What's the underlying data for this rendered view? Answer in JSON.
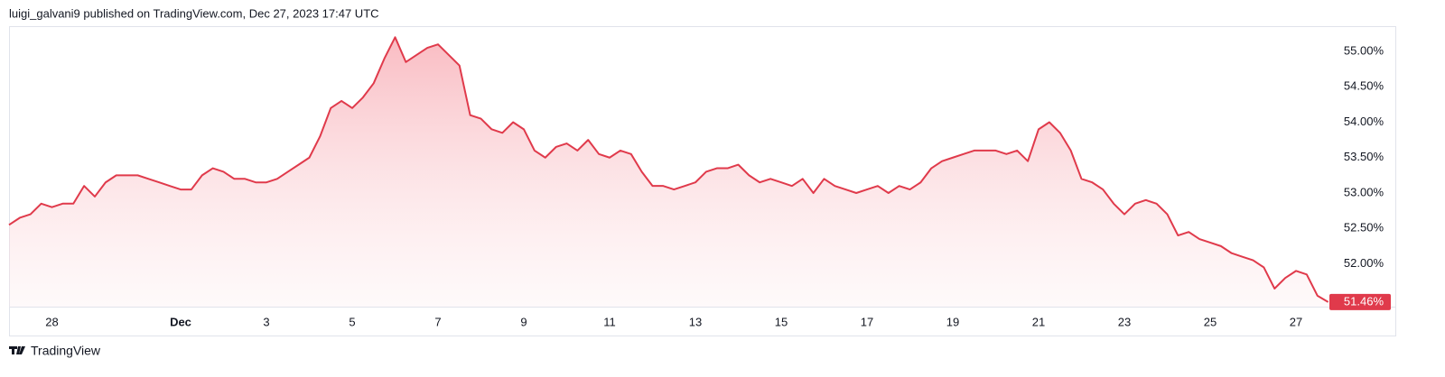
{
  "chart_data": {
    "type": "area",
    "title": "luigi_galvani9 published on TradingView.com, Dec 27, 2023 17:47 UTC",
    "source": "TradingView",
    "color": "#e03a4b",
    "categories": [
      null,
      null,
      null,
      null,
      "28",
      null,
      null,
      null,
      null,
      null,
      null,
      null,
      null,
      null,
      null,
      null,
      "Dec",
      null,
      null,
      null,
      null,
      null,
      null,
      null,
      "3",
      null,
      null,
      null,
      null,
      null,
      null,
      null,
      "5",
      null,
      null,
      null,
      null,
      null,
      null,
      null,
      "7",
      null,
      null,
      null,
      null,
      null,
      null,
      null,
      "9",
      null,
      null,
      null,
      null,
      null,
      null,
      null,
      "11",
      null,
      null,
      null,
      null,
      null,
      null,
      null,
      "13",
      null,
      null,
      null,
      null,
      null,
      null,
      null,
      "15",
      null,
      null,
      null,
      null,
      null,
      null,
      null,
      "17",
      null,
      null,
      null,
      null,
      null,
      null,
      null,
      "19",
      null,
      null,
      null,
      null,
      null,
      null,
      null,
      "21",
      null,
      null,
      null,
      null,
      null,
      null,
      null,
      "23",
      null,
      null,
      null,
      null,
      null,
      null,
      null,
      "25",
      null,
      null,
      null,
      null,
      null,
      null,
      null,
      "27",
      null,
      null,
      null
    ],
    "values": [
      52.55,
      52.65,
      52.7,
      52.85,
      52.8,
      52.85,
      52.85,
      53.1,
      52.95,
      53.15,
      53.25,
      53.25,
      53.25,
      53.2,
      53.15,
      53.1,
      53.05,
      53.05,
      53.25,
      53.35,
      53.3,
      53.2,
      53.2,
      53.15,
      53.15,
      53.2,
      53.3,
      53.4,
      53.5,
      53.8,
      54.2,
      54.3,
      54.2,
      54.35,
      54.55,
      54.9,
      55.2,
      54.85,
      54.95,
      55.05,
      55.1,
      54.95,
      54.8,
      54.1,
      54.05,
      53.9,
      53.85,
      54.0,
      53.9,
      53.6,
      53.5,
      53.65,
      53.7,
      53.6,
      53.75,
      53.55,
      53.5,
      53.6,
      53.55,
      53.3,
      53.1,
      53.1,
      53.05,
      53.1,
      53.15,
      53.3,
      53.35,
      53.35,
      53.4,
      53.25,
      53.15,
      53.2,
      53.15,
      53.1,
      53.2,
      53.0,
      53.2,
      53.1,
      53.05,
      53.0,
      53.05,
      53.1,
      53.0,
      53.1,
      53.05,
      53.15,
      53.35,
      53.45,
      53.5,
      53.55,
      53.6,
      53.6,
      53.6,
      53.55,
      53.6,
      53.45,
      53.9,
      54.0,
      53.85,
      53.6,
      53.2,
      53.15,
      53.05,
      52.85,
      52.7,
      52.85,
      52.9,
      52.85,
      52.7,
      52.4,
      52.45,
      52.35,
      52.3,
      52.25,
      52.15,
      52.1,
      52.05,
      51.95,
      51.65,
      51.8,
      51.9,
      51.85,
      51.55,
      51.46
    ],
    "value_labels": [
      null,
      null,
      null,
      null,
      null,
      null,
      null,
      null,
      null,
      null,
      null,
      null,
      null,
      null,
      null,
      null,
      null,
      null,
      null,
      null,
      null,
      null,
      null,
      null,
      null,
      null,
      null,
      null,
      null,
      null,
      null,
      null,
      null,
      null,
      null,
      null,
      null,
      null,
      null,
      null,
      null,
      null,
      null,
      null,
      null,
      null,
      null,
      null,
      null,
      null,
      null,
      null,
      null,
      null,
      null,
      null,
      null,
      null,
      null,
      null,
      null,
      null,
      null,
      null,
      null,
      null,
      null,
      null,
      null,
      null,
      null,
      null,
      null,
      null,
      null,
      null,
      null,
      null,
      null,
      null,
      null,
      null,
      null,
      null,
      null,
      null,
      null,
      null,
      null,
      null,
      null,
      null,
      null,
      null,
      null,
      null,
      null,
      null,
      null,
      null,
      null,
      null,
      null,
      null,
      null,
      null,
      null,
      null,
      null,
      null,
      null,
      null,
      null,
      null,
      null,
      null,
      null,
      null,
      null,
      null,
      null,
      null,
      null,
      "51.46%"
    ],
    "ylim": [
      51.395,
      55.344
    ],
    "yticks": [
      {
        "value": 52,
        "label": "52.00%"
      },
      {
        "value": 52.5,
        "label": "52.50%"
      },
      {
        "value": 53,
        "label": "53.00%"
      },
      {
        "value": 53.5,
        "label": "53.50%"
      },
      {
        "value": 54,
        "label": "54.00%"
      },
      {
        "value": 54.5,
        "label": "54.50%"
      },
      {
        "value": 55,
        "label": "55.00%"
      }
    ],
    "grid": false
  }
}
